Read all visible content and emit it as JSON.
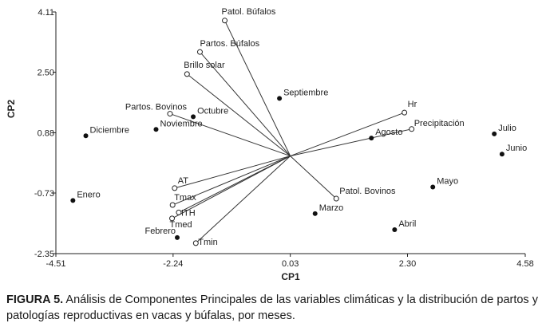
{
  "chart_data": {
    "type": "scatter",
    "subtype": "biplot",
    "xlabel": "CP1",
    "ylabel": "CP2",
    "xlim": [
      -4.51,
      4.58
    ],
    "ylim": [
      -2.35,
      4.11
    ],
    "xticks": [
      "-4.51",
      "-2.24",
      "0.03",
      "2.30",
      "4.58"
    ],
    "yticks": [
      "-2.35",
      "-0.73",
      "0.88",
      "2.50",
      "4.11"
    ],
    "grid": false,
    "vector_origin": [
      0.03,
      0.26
    ],
    "months": [
      {
        "label": "Diciembre",
        "x": -3.93,
        "y": 0.8
      },
      {
        "label": "Noviembre",
        "x": -2.57,
        "y": 0.97
      },
      {
        "label": "Octubre",
        "x": -1.85,
        "y": 1.31
      },
      {
        "label": "Septiembre",
        "x": -0.18,
        "y": 1.8
      },
      {
        "label": "Agosto",
        "x": 1.6,
        "y": 0.74
      },
      {
        "label": "Julio",
        "x": 3.98,
        "y": 0.85
      },
      {
        "label": "Junio",
        "x": 4.13,
        "y": 0.31
      },
      {
        "label": "Mayo",
        "x": 2.79,
        "y": -0.57
      },
      {
        "label": "Abril",
        "x": 2.05,
        "y": -1.71
      },
      {
        "label": "Marzo",
        "x": 0.51,
        "y": -1.28
      },
      {
        "label": "Febrero",
        "x": -2.16,
        "y": -1.92
      },
      {
        "label": "Enero",
        "x": -4.18,
        "y": -0.93
      }
    ],
    "variables": [
      {
        "label": "Patol. Búfalos",
        "x": -1.24,
        "y": 3.88
      },
      {
        "label": "Partos. Búfalos",
        "x": -1.72,
        "y": 3.04
      },
      {
        "label": "Brillo solar",
        "x": -1.97,
        "y": 2.45
      },
      {
        "label": "Partos. Bovinos",
        "x": -2.3,
        "y": 1.39
      },
      {
        "label": "Hr",
        "x": 2.24,
        "y": 1.42
      },
      {
        "label": "Precipitación",
        "x": 2.38,
        "y": 0.98
      },
      {
        "label": "Patol. Bovinos",
        "x": 0.92,
        "y": -0.88
      },
      {
        "label": "AT",
        "x": -2.21,
        "y": -0.6
      },
      {
        "label": "Tmax",
        "x": -2.25,
        "y": -1.05
      },
      {
        "label": "ITH",
        "x": -2.13,
        "y": -1.25
      },
      {
        "label": "Tmed",
        "x": -2.26,
        "y": -1.41
      },
      {
        "label": "Tmin",
        "x": -1.8,
        "y": -2.07
      }
    ]
  },
  "caption": {
    "label": "FIGURA 5.",
    "text": " Análisis de Componentes Principales de las variables climáticas y la distribución de partos y patologías reproductivas en vacas y búfalas, por meses."
  }
}
